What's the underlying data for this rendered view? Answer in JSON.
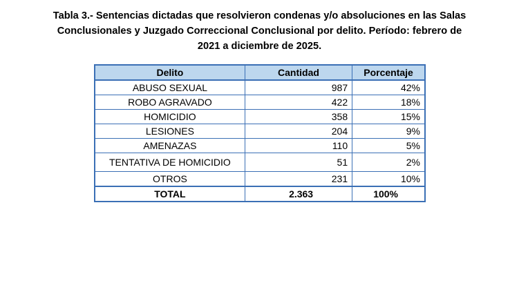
{
  "caption": {
    "line1": "Tabla 3.- Sentencias dictadas que resolvieron condenas y/o absoluciones en las Salas",
    "line2": "Conclusionales y Juzgado Correccional Conclusional por delito. Período: febrero de",
    "line3": "2021 a diciembre de 2025."
  },
  "table": {
    "headers": [
      "Delito",
      "Cantidad",
      "Porcentaje"
    ],
    "rows": [
      {
        "delito": "ABUSO SEXUAL",
        "cantidad": "987",
        "porcentaje": "42%"
      },
      {
        "delito": "ROBO AGRAVADO",
        "cantidad": "422",
        "porcentaje": "18%"
      },
      {
        "delito": "HOMICIDIO",
        "cantidad": "358",
        "porcentaje": "15%"
      },
      {
        "delito": "LESIONES",
        "cantidad": "204",
        "porcentaje": "9%"
      },
      {
        "delito": "AMENAZAS",
        "cantidad": "110",
        "porcentaje": "5%"
      },
      {
        "delito": "TENTATIVA DE HOMICIDIO",
        "cantidad": "51",
        "porcentaje": "2%"
      },
      {
        "delito": "OTROS",
        "cantidad": "231",
        "porcentaje": "10%"
      }
    ],
    "total": {
      "delito": "TOTAL",
      "cantidad": "2.363",
      "porcentaje": "100%"
    }
  },
  "colors": {
    "header_fill": "#bdd7ee",
    "border": "#3a6fb5"
  }
}
